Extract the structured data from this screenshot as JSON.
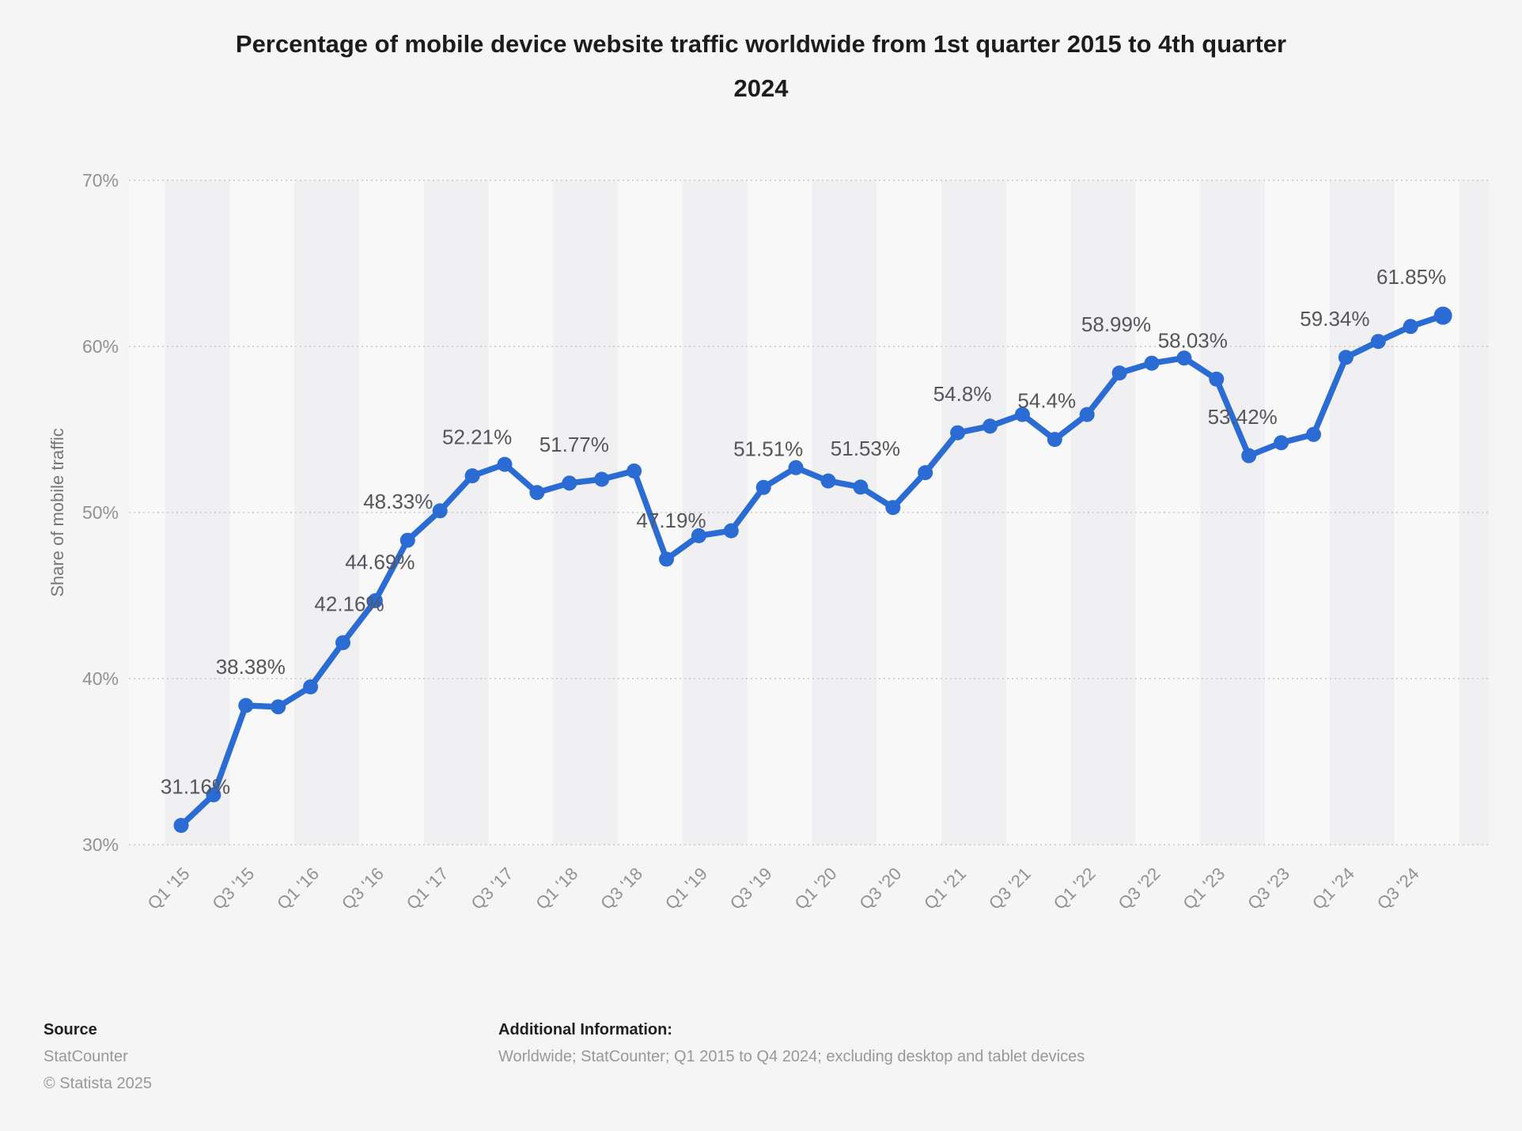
{
  "title": "Percentage of mobile device website traffic worldwide from 1st quarter 2015 to 4th quarter 2024",
  "footer": {
    "source_heading": "Source",
    "source_name": "StatCounter",
    "copyright": "© Statista 2025",
    "additional_heading": "Additional Information:",
    "additional_text": "Worldwide; StatCounter; Q1 2015 to Q4 2024; excluding desktop and tablet devices"
  },
  "colors": {
    "line": "#2b6bd4",
    "grid": "#c8c8cb",
    "tick_text": "#929296",
    "data_label": "#56565a",
    "axis_title": "#77777a",
    "band_dark": "#f0f0f2",
    "band_light": "#f8f8f9"
  },
  "chart_data": {
    "type": "line",
    "title": "Percentage of mobile device website traffic worldwide from 1st quarter 2015 to 4th quarter 2024",
    "xlabel": "",
    "ylabel": "Share of mobile traffic",
    "ylim": [
      30,
      70
    ],
    "y_ticks": [
      30,
      40,
      50,
      60,
      70
    ],
    "y_tick_labels": [
      "30%",
      "40%",
      "50%",
      "60%",
      "70%"
    ],
    "x_tick_labels": [
      "Q1 '15",
      "Q3 '15",
      "Q1 '16",
      "Q3 '16",
      "Q1 '17",
      "Q3 '17",
      "Q1 '18",
      "Q3 '18",
      "Q1 '19",
      "Q3 '19",
      "Q1 '20",
      "Q3 '20",
      "Q1 '21",
      "Q3 '21",
      "Q1 '22",
      "Q3 '22",
      "Q1 '23",
      "Q3 '23",
      "Q1 '24",
      "Q3 '24"
    ],
    "grid": true,
    "legend_position": "none",
    "series": [
      {
        "name": "Share of mobile traffic",
        "points": [
          {
            "quarter": "Q1 '15",
            "value": 31.16,
            "label": "31.16%"
          },
          {
            "quarter": "Q2 '15",
            "value": 33.0,
            "label": null
          },
          {
            "quarter": "Q3 '15",
            "value": 38.38,
            "label": "38.38%"
          },
          {
            "quarter": "Q4 '15",
            "value": 38.3,
            "label": null
          },
          {
            "quarter": "Q1 '16",
            "value": 39.5,
            "label": null
          },
          {
            "quarter": "Q2 '16",
            "value": 42.16,
            "label": "42.16%"
          },
          {
            "quarter": "Q3 '16",
            "value": 44.69,
            "label": "44.69%"
          },
          {
            "quarter": "Q4 '16",
            "value": 48.33,
            "label": "48.33%"
          },
          {
            "quarter": "Q1 '17",
            "value": 50.1,
            "label": null
          },
          {
            "quarter": "Q2 '17",
            "value": 52.21,
            "label": "52.21%"
          },
          {
            "quarter": "Q3 '17",
            "value": 52.9,
            "label": null
          },
          {
            "quarter": "Q4 '17",
            "value": 51.2,
            "label": null
          },
          {
            "quarter": "Q1 '18",
            "value": 51.77,
            "label": "51.77%"
          },
          {
            "quarter": "Q2 '18",
            "value": 52.0,
            "label": null
          },
          {
            "quarter": "Q3 '18",
            "value": 52.5,
            "label": null
          },
          {
            "quarter": "Q4 '18",
            "value": 47.19,
            "label": "47.19%"
          },
          {
            "quarter": "Q1 '19",
            "value": 48.6,
            "label": null
          },
          {
            "quarter": "Q2 '19",
            "value": 48.9,
            "label": null
          },
          {
            "quarter": "Q3 '19",
            "value": 51.51,
            "label": "51.51%"
          },
          {
            "quarter": "Q4 '19",
            "value": 52.7,
            "label": null
          },
          {
            "quarter": "Q1 '20",
            "value": 51.9,
            "label": null
          },
          {
            "quarter": "Q2 '20",
            "value": 51.53,
            "label": "51.53%"
          },
          {
            "quarter": "Q3 '20",
            "value": 50.3,
            "label": null
          },
          {
            "quarter": "Q4 '20",
            "value": 52.4,
            "label": null
          },
          {
            "quarter": "Q1 '21",
            "value": 54.8,
            "label": "54.8%"
          },
          {
            "quarter": "Q2 '21",
            "value": 55.2,
            "label": null
          },
          {
            "quarter": "Q3 '21",
            "value": 55.9,
            "label": null
          },
          {
            "quarter": "Q4 '21",
            "value": 54.4,
            "label": "54.4%"
          },
          {
            "quarter": "Q1 '22",
            "value": 55.9,
            "label": null
          },
          {
            "quarter": "Q2 '22",
            "value": 58.4,
            "label": null
          },
          {
            "quarter": "Q3 '22",
            "value": 58.99,
            "label": "58.99%"
          },
          {
            "quarter": "Q4 '22",
            "value": 59.3,
            "label": null
          },
          {
            "quarter": "Q1 '23",
            "value": 58.03,
            "label": "58.03%"
          },
          {
            "quarter": "Q2 '23",
            "value": 53.42,
            "label": "53.42%"
          },
          {
            "quarter": "Q3 '23",
            "value": 54.2,
            "label": null
          },
          {
            "quarter": "Q4 '23",
            "value": 54.7,
            "label": null
          },
          {
            "quarter": "Q1 '24",
            "value": 59.34,
            "label": "59.34%"
          },
          {
            "quarter": "Q2 '24",
            "value": 60.3,
            "label": null
          },
          {
            "quarter": "Q3 '24",
            "value": 61.2,
            "label": null
          },
          {
            "quarter": "Q4 '24",
            "value": 61.85,
            "label": "61.85%"
          }
        ]
      }
    ]
  }
}
